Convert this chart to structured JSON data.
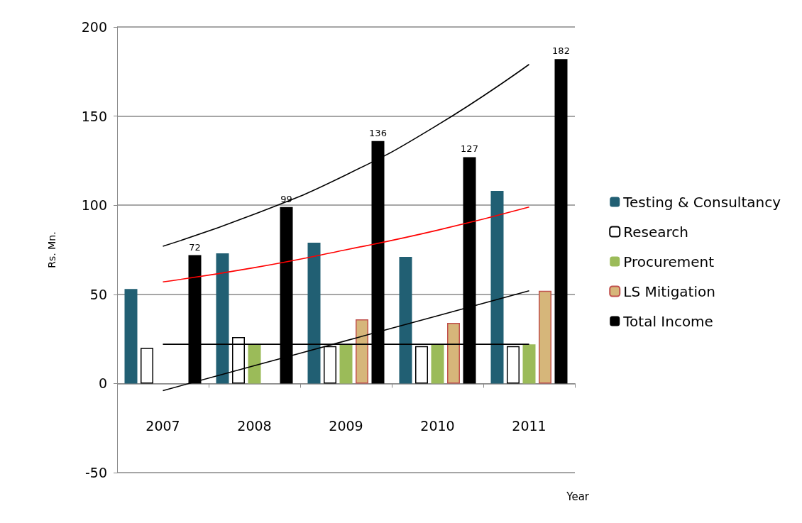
{
  "chart_data": {
    "type": "bar",
    "xlabel": "Year",
    "ylabel": "Rs. Mn.",
    "categories": [
      "2007",
      "2008",
      "2009",
      "2010",
      "2011"
    ],
    "series": [
      {
        "name": "Testing & Consultancy",
        "color": "#215f73",
        "values": [
          53,
          73,
          79,
          71,
          108
        ]
      },
      {
        "name": "Research",
        "color": "#ffffff",
        "values": [
          20,
          26,
          21,
          21,
          21
        ]
      },
      {
        "name": "Procurement",
        "color": "#9bbb59",
        "values": [
          null,
          22,
          22,
          22,
          22
        ]
      },
      {
        "name": "LS Mitigation",
        "color": "#d6b67a",
        "values": [
          null,
          null,
          36,
          34,
          52
        ]
      },
      {
        "name": "Total Income",
        "color": "#000000",
        "values": [
          72,
          99,
          136,
          127,
          182
        ],
        "value_labels": [
          "72",
          "99",
          "136",
          "127",
          "182"
        ]
      },
      {
        "type": "line",
        "color": "#000000",
        "values": [
          77,
          95,
          117,
          145,
          179
        ]
      },
      {
        "type": "line",
        "color": "#ff0000",
        "values": [
          57,
          65,
          75,
          86,
          99
        ]
      },
      {
        "type": "line",
        "color": "#000000",
        "values": [
          -4,
          10,
          24,
          38,
          52
        ]
      },
      {
        "type": "line",
        "color": "#000000",
        "values": [
          22,
          22,
          22,
          22,
          22
        ]
      }
    ],
    "ylim": [
      -50,
      200
    ],
    "yticks": [
      -50,
      0,
      50,
      100,
      150,
      200
    ],
    "grid": "y",
    "legend": "right",
    "marker": "none",
    "line_style": "solid"
  }
}
